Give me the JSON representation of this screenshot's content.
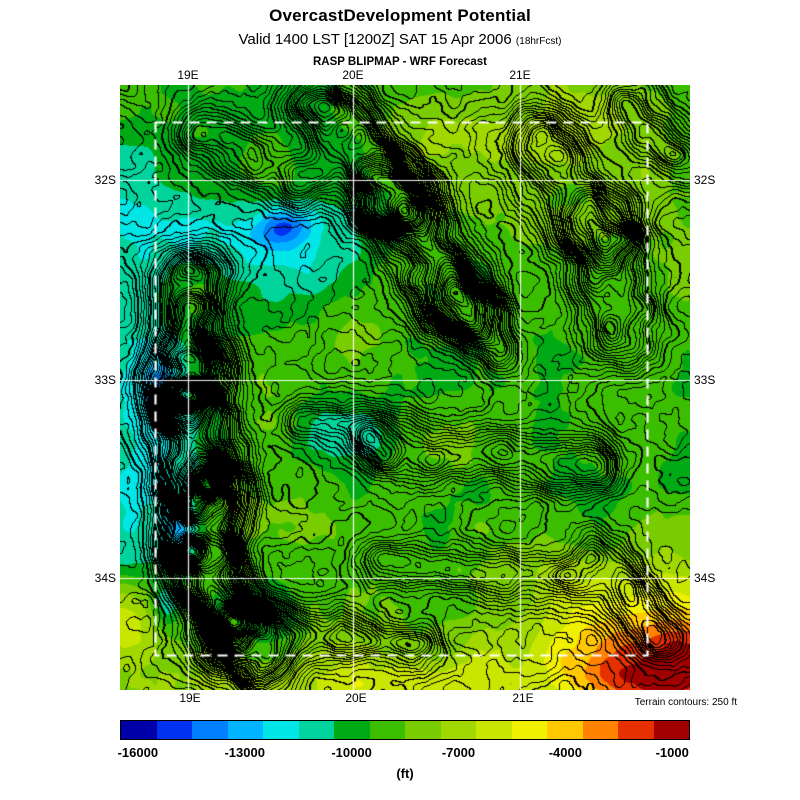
{
  "header": {
    "title": "OvercastDevelopment Potential",
    "valid_line": "Valid 1400 LST [1200Z] SAT 15 Apr 2006",
    "forecast_tag": "(18hrFcst)",
    "model_line": "RASP BLIPMAP - WRF Forecast"
  },
  "axes": {
    "top": [
      "19E",
      "20E",
      "21E"
    ],
    "bottom": [
      "19E",
      "20E",
      "21E"
    ],
    "left": [
      "32S",
      "33S",
      "34S"
    ],
    "right": [
      "32S",
      "33S",
      "34S"
    ]
  },
  "colorbar": {
    "ticks": [
      "-16000",
      "-13000",
      "-10000",
      "-7000",
      "-4000",
      "-1000"
    ],
    "unit": "(ft)",
    "note": "Terrain contours: 250 ft",
    "colors": [
      "#0000a8",
      "#0032f0",
      "#0080ff",
      "#00b4ff",
      "#00e6e6",
      "#00d49c",
      "#00aa14",
      "#3cbe00",
      "#78cc00",
      "#a0d800",
      "#c8e600",
      "#f0f000",
      "#ffc800",
      "#ff8200",
      "#e63000",
      "#a00000"
    ]
  }
}
